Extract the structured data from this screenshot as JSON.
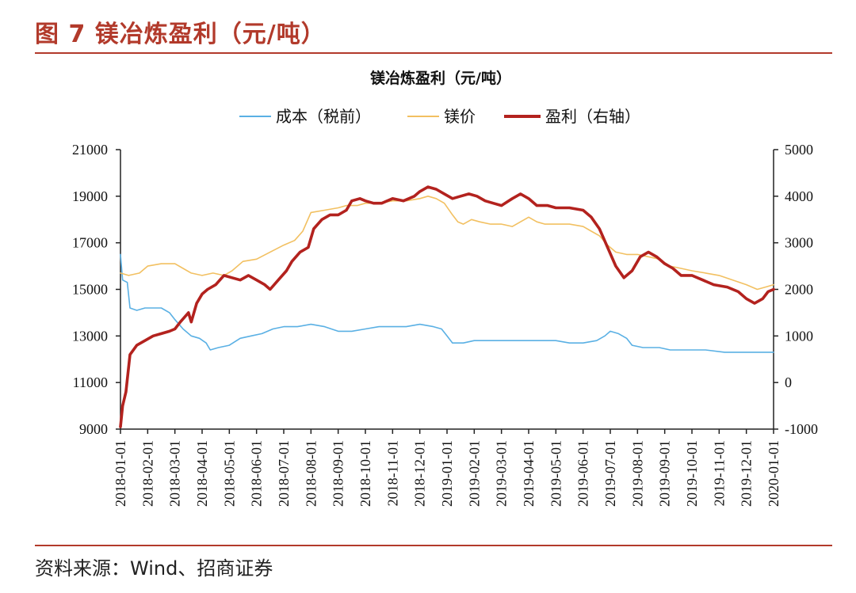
{
  "figure": {
    "title": "图 7 镁冶炼盈利（元/吨）",
    "source": "资料来源：Wind、招商证券"
  },
  "colors": {
    "accent": "#b23a2b",
    "cost": "#5ab0e4",
    "price": "#f2c061",
    "profit": "#b3221e"
  },
  "chart_data": {
    "type": "line",
    "title": "镁冶炼盈利（元/吨）",
    "legend": [
      "成本（税前）",
      "镁价",
      "盈利（右轴）"
    ],
    "legend_position": "top-center",
    "x_tick_labels": [
      "2018-01-01",
      "2018-02-01",
      "2018-03-01",
      "2018-04-01",
      "2018-05-01",
      "2018-06-01",
      "2018-07-01",
      "2018-08-01",
      "2018-09-01",
      "2018-10-01",
      "2018-11-01",
      "2018-12-01",
      "2019-01-01",
      "2019-02-01",
      "2019-03-01",
      "2019-04-01",
      "2019-05-01",
      "2019-06-01",
      "2019-07-01",
      "2019-08-01",
      "2019-09-01",
      "2019-10-01",
      "2019-11-01",
      "2019-12-01",
      "2020-01-01"
    ],
    "y_left": {
      "min": 9000,
      "max": 21000,
      "ticks": [
        9000,
        11000,
        13000,
        15000,
        17000,
        19000,
        21000
      ]
    },
    "y_right": {
      "min": -1000,
      "max": 5000,
      "ticks": [
        -1000,
        0,
        1000,
        2000,
        3000,
        4000,
        5000
      ]
    },
    "grid": false,
    "series": [
      {
        "name": "成本（税前）",
        "axis": "left",
        "points": [
          [
            0,
            16500
          ],
          [
            0.08,
            15400
          ],
          [
            0.25,
            15300
          ],
          [
            0.35,
            14200
          ],
          [
            0.6,
            14100
          ],
          [
            0.9,
            14200
          ],
          [
            1.5,
            14200
          ],
          [
            1.8,
            14000
          ],
          [
            2.0,
            13700
          ],
          [
            2.3,
            13300
          ],
          [
            2.6,
            13000
          ],
          [
            2.9,
            12900
          ],
          [
            3.15,
            12700
          ],
          [
            3.3,
            12400
          ],
          [
            3.6,
            12500
          ],
          [
            4.0,
            12600
          ],
          [
            4.4,
            12900
          ],
          [
            4.8,
            13000
          ],
          [
            5.2,
            13100
          ],
          [
            5.6,
            13300
          ],
          [
            6.0,
            13400
          ],
          [
            6.5,
            13400
          ],
          [
            7.0,
            13500
          ],
          [
            7.5,
            13400
          ],
          [
            8.0,
            13200
          ],
          [
            8.5,
            13200
          ],
          [
            9.0,
            13300
          ],
          [
            9.5,
            13400
          ],
          [
            10.0,
            13400
          ],
          [
            10.5,
            13400
          ],
          [
            11.0,
            13500
          ],
          [
            11.5,
            13400
          ],
          [
            11.8,
            13300
          ],
          [
            12.0,
            13000
          ],
          [
            12.2,
            12700
          ],
          [
            12.6,
            12700
          ],
          [
            13.0,
            12800
          ],
          [
            13.5,
            12800
          ],
          [
            14.0,
            12800
          ],
          [
            14.5,
            12800
          ],
          [
            15.0,
            12800
          ],
          [
            15.5,
            12800
          ],
          [
            16.0,
            12800
          ],
          [
            16.5,
            12700
          ],
          [
            17.0,
            12700
          ],
          [
            17.5,
            12800
          ],
          [
            17.8,
            13000
          ],
          [
            18.0,
            13200
          ],
          [
            18.3,
            13100
          ],
          [
            18.6,
            12900
          ],
          [
            18.8,
            12600
          ],
          [
            19.2,
            12500
          ],
          [
            19.8,
            12500
          ],
          [
            20.2,
            12400
          ],
          [
            20.8,
            12400
          ],
          [
            21.5,
            12400
          ],
          [
            22.2,
            12300
          ],
          [
            23.0,
            12300
          ],
          [
            24.0,
            12300
          ]
        ]
      },
      {
        "name": "镁价",
        "axis": "left",
        "points": [
          [
            0,
            15700
          ],
          [
            0.3,
            15600
          ],
          [
            0.7,
            15700
          ],
          [
            1.0,
            16000
          ],
          [
            1.5,
            16100
          ],
          [
            2.0,
            16100
          ],
          [
            2.3,
            15900
          ],
          [
            2.6,
            15700
          ],
          [
            3.0,
            15600
          ],
          [
            3.4,
            15700
          ],
          [
            3.8,
            15600
          ],
          [
            4.1,
            15800
          ],
          [
            4.5,
            16200
          ],
          [
            5.0,
            16300
          ],
          [
            5.5,
            16600
          ],
          [
            6.0,
            16900
          ],
          [
            6.4,
            17100
          ],
          [
            6.7,
            17500
          ],
          [
            7.0,
            18300
          ],
          [
            7.5,
            18400
          ],
          [
            8.0,
            18500
          ],
          [
            8.3,
            18600
          ],
          [
            8.7,
            18600
          ],
          [
            9.0,
            18700
          ],
          [
            9.5,
            18700
          ],
          [
            10.0,
            18800
          ],
          [
            10.5,
            18800
          ],
          [
            11.0,
            18900
          ],
          [
            11.3,
            19000
          ],
          [
            11.6,
            18900
          ],
          [
            11.9,
            18700
          ],
          [
            12.2,
            18200
          ],
          [
            12.4,
            17900
          ],
          [
            12.6,
            17800
          ],
          [
            12.9,
            18000
          ],
          [
            13.2,
            17900
          ],
          [
            13.6,
            17800
          ],
          [
            14.0,
            17800
          ],
          [
            14.4,
            17700
          ],
          [
            14.7,
            17900
          ],
          [
            15.0,
            18100
          ],
          [
            15.3,
            17900
          ],
          [
            15.6,
            17800
          ],
          [
            16.0,
            17800
          ],
          [
            16.5,
            17800
          ],
          [
            17.0,
            17700
          ],
          [
            17.3,
            17500
          ],
          [
            17.6,
            17300
          ],
          [
            17.9,
            16900
          ],
          [
            18.2,
            16600
          ],
          [
            18.6,
            16500
          ],
          [
            19.0,
            16500
          ],
          [
            19.4,
            16400
          ],
          [
            19.8,
            16300
          ],
          [
            20.2,
            16000
          ],
          [
            20.6,
            15900
          ],
          [
            21.0,
            15800
          ],
          [
            21.5,
            15700
          ],
          [
            22.0,
            15600
          ],
          [
            22.5,
            15400
          ],
          [
            23.0,
            15200
          ],
          [
            23.4,
            15000
          ],
          [
            23.7,
            15100
          ],
          [
            24.0,
            15200
          ]
        ]
      },
      {
        "name": "盈利（右轴）",
        "axis": "right",
        "points": [
          [
            0,
            -950
          ],
          [
            0.08,
            -500
          ],
          [
            0.2,
            -200
          ],
          [
            0.35,
            600
          ],
          [
            0.6,
            800
          ],
          [
            0.9,
            900
          ],
          [
            1.2,
            1000
          ],
          [
            1.5,
            1050
          ],
          [
            1.8,
            1100
          ],
          [
            2.0,
            1150
          ],
          [
            2.2,
            1300
          ],
          [
            2.5,
            1500
          ],
          [
            2.6,
            1300
          ],
          [
            2.8,
            1700
          ],
          [
            3.0,
            1900
          ],
          [
            3.2,
            2000
          ],
          [
            3.5,
            2100
          ],
          [
            3.8,
            2300
          ],
          [
            4.1,
            2250
          ],
          [
            4.4,
            2200
          ],
          [
            4.7,
            2300
          ],
          [
            5.0,
            2200
          ],
          [
            5.3,
            2100
          ],
          [
            5.5,
            2000
          ],
          [
            5.8,
            2200
          ],
          [
            6.1,
            2400
          ],
          [
            6.3,
            2600
          ],
          [
            6.6,
            2800
          ],
          [
            6.9,
            2900
          ],
          [
            7.1,
            3300
          ],
          [
            7.4,
            3500
          ],
          [
            7.7,
            3600
          ],
          [
            8.0,
            3600
          ],
          [
            8.3,
            3700
          ],
          [
            8.5,
            3900
          ],
          [
            8.8,
            3950
          ],
          [
            9.0,
            3900
          ],
          [
            9.3,
            3850
          ],
          [
            9.6,
            3850
          ],
          [
            10.0,
            3950
          ],
          [
            10.4,
            3900
          ],
          [
            10.8,
            4000
          ],
          [
            11.0,
            4100
          ],
          [
            11.3,
            4200
          ],
          [
            11.6,
            4150
          ],
          [
            11.9,
            4050
          ],
          [
            12.2,
            3950
          ],
          [
            12.5,
            4000
          ],
          [
            12.8,
            4050
          ],
          [
            13.1,
            4000
          ],
          [
            13.4,
            3900
          ],
          [
            13.7,
            3850
          ],
          [
            14.0,
            3800
          ],
          [
            14.4,
            3950
          ],
          [
            14.7,
            4050
          ],
          [
            15.0,
            3950
          ],
          [
            15.3,
            3800
          ],
          [
            15.7,
            3800
          ],
          [
            16.0,
            3750
          ],
          [
            16.5,
            3750
          ],
          [
            17.0,
            3700
          ],
          [
            17.3,
            3550
          ],
          [
            17.6,
            3300
          ],
          [
            17.9,
            2900
          ],
          [
            18.2,
            2500
          ],
          [
            18.5,
            2250
          ],
          [
            18.8,
            2400
          ],
          [
            19.1,
            2700
          ],
          [
            19.4,
            2800
          ],
          [
            19.7,
            2700
          ],
          [
            20.0,
            2550
          ],
          [
            20.3,
            2450
          ],
          [
            20.6,
            2300
          ],
          [
            21.0,
            2300
          ],
          [
            21.4,
            2200
          ],
          [
            21.8,
            2100
          ],
          [
            22.3,
            2050
          ],
          [
            22.7,
            1950
          ],
          [
            23.0,
            1800
          ],
          [
            23.3,
            1700
          ],
          [
            23.6,
            1800
          ],
          [
            23.8,
            1950
          ],
          [
            24.0,
            2000
          ]
        ]
      }
    ]
  }
}
